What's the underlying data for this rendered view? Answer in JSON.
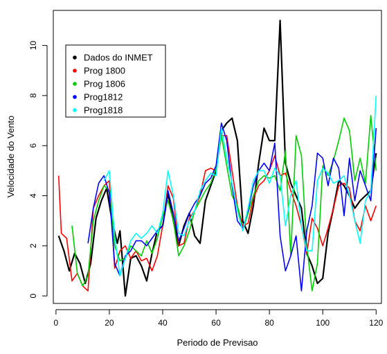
{
  "chart_data": {
    "type": "line",
    "xlabel": "Periodo de Previsao",
    "ylabel": "Velocidade do Vento",
    "xlim": [
      -1,
      122
    ],
    "ylim": [
      -0.3,
      11.4
    ],
    "x_ticks": [
      0,
      20,
      40,
      60,
      80,
      100,
      120
    ],
    "y_ticks": [
      0,
      2,
      4,
      6,
      8,
      10
    ],
    "grid": false,
    "legend_position": "top-left",
    "series": [
      {
        "name": "Dados do INMET",
        "color": "#000000",
        "x": [
          1,
          3,
          5,
          7,
          9,
          11,
          13,
          15,
          17,
          19,
          21,
          23,
          24,
          25,
          26,
          28,
          30,
          32,
          34,
          36,
          38,
          40,
          42,
          44,
          46,
          48,
          50,
          52,
          54,
          56,
          58,
          60,
          62,
          64,
          66,
          68,
          70,
          72,
          74,
          76,
          78,
          80,
          82,
          84,
          86,
          88,
          90,
          92,
          94,
          96,
          98,
          100,
          102,
          104,
          106,
          108,
          110,
          112,
          114,
          116,
          118,
          120
        ],
        "y": [
          2.4,
          1.8,
          1.0,
          1.7,
          1.3,
          0.5,
          1.3,
          3.1,
          3.8,
          4.3,
          3.0,
          2.1,
          2.6,
          1.3,
          0.0,
          1.5,
          1.6,
          1.2,
          0.6,
          1.7,
          2.6,
          2.8,
          4.1,
          3.0,
          2.0,
          2.8,
          3.3,
          2.4,
          2.1,
          3.8,
          4.4,
          5.0,
          6.6,
          6.9,
          7.1,
          6.2,
          3.0,
          2.5,
          3.6,
          5.3,
          6.7,
          6.2,
          6.2,
          11.0,
          5.3,
          4.5,
          4.0,
          3.5,
          1.7,
          1.2,
          0.5,
          0.7,
          2.5,
          3.5,
          4.6,
          4.4,
          4.0,
          3.5,
          3.8,
          4.0,
          4.2,
          5.7
        ]
      },
      {
        "name": "Prog 1800",
        "color": "#ff0000",
        "x": [
          1,
          2,
          4,
          6,
          8,
          10,
          12,
          14,
          16,
          18,
          20,
          22,
          24,
          26,
          28,
          30,
          32,
          34,
          36,
          38,
          40,
          42,
          44,
          46,
          48,
          50,
          52,
          54,
          56,
          58,
          60,
          62,
          64,
          66,
          68,
          70,
          72,
          74,
          76,
          78,
          80,
          82,
          84,
          86,
          88,
          90,
          92,
          94,
          96,
          98,
          100,
          102,
          104,
          106,
          108,
          110,
          112,
          114,
          116,
          118,
          120
        ],
        "y": [
          4.8,
          2.5,
          2.3,
          0.6,
          0.9,
          0.4,
          0.2,
          3.5,
          4.0,
          4.4,
          4.6,
          1.1,
          1.8,
          2.0,
          1.5,
          1.8,
          1.4,
          1.5,
          1.0,
          1.6,
          2.8,
          4.4,
          3.9,
          2.0,
          2.1,
          3.1,
          3.4,
          4.0,
          5.0,
          5.1,
          5.0,
          6.4,
          6.4,
          5.0,
          3.6,
          2.8,
          2.9,
          3.9,
          4.4,
          4.6,
          5.0,
          5.6,
          4.8,
          4.9,
          4.2,
          3.6,
          2.8,
          1.7,
          3.1,
          2.7,
          2.0,
          2.7,
          3.5,
          4.4,
          4.5,
          4.3,
          3.0,
          2.6,
          3.6,
          3.0,
          3.6
        ]
      },
      {
        "name": "Prog 1806",
        "color": "#00cd00",
        "x": [
          6,
          8,
          10,
          12,
          14,
          16,
          18,
          20,
          22,
          24,
          26,
          28,
          30,
          32,
          34,
          36,
          38,
          40,
          42,
          44,
          46,
          48,
          50,
          52,
          54,
          56,
          58,
          60,
          62,
          64,
          66,
          68,
          70,
          72,
          74,
          76,
          78,
          80,
          82,
          84,
          86,
          88,
          90,
          92,
          94,
          96,
          98,
          100,
          102,
          104,
          106,
          108,
          110,
          112,
          114,
          116,
          118,
          120
        ],
        "y": [
          2.8,
          0.9,
          0.4,
          0.8,
          3.0,
          3.8,
          4.4,
          4.2,
          2.0,
          1.4,
          1.5,
          2.0,
          1.8,
          1.6,
          2.2,
          1.7,
          2.3,
          3.2,
          3.8,
          3.0,
          1.6,
          2.0,
          2.6,
          3.4,
          3.8,
          4.2,
          4.5,
          5.1,
          6.4,
          5.2,
          4.0,
          3.6,
          2.6,
          3.3,
          4.0,
          4.6,
          4.8,
          4.7,
          4.8,
          4.2,
          5.8,
          1.6,
          6.4,
          5.6,
          2.0,
          0.2,
          1.3,
          5.2,
          4.8,
          5.4,
          6.2,
          7.1,
          6.6,
          4.6,
          5.5,
          4.5,
          7.2,
          5.0
        ]
      },
      {
        "name": "Prog1812",
        "color": "#0000ff",
        "x": [
          12,
          14,
          16,
          18,
          20,
          22,
          24,
          26,
          28,
          30,
          32,
          34,
          36,
          38,
          40,
          42,
          44,
          46,
          48,
          50,
          52,
          54,
          56,
          58,
          60,
          62,
          64,
          66,
          68,
          70,
          72,
          74,
          76,
          78,
          80,
          82,
          84,
          86,
          88,
          90,
          92,
          94,
          96,
          98,
          100,
          102,
          104,
          106,
          108,
          110,
          112,
          114,
          116,
          118,
          120
        ],
        "y": [
          2.1,
          3.5,
          4.5,
          4.8,
          4.1,
          1.3,
          0.8,
          1.6,
          1.8,
          2.2,
          2.2,
          2.0,
          2.3,
          2.6,
          2.8,
          4.2,
          3.3,
          2.2,
          2.7,
          3.3,
          3.7,
          4.0,
          4.5,
          4.7,
          5.2,
          6.9,
          6.2,
          4.4,
          3.0,
          2.7,
          3.4,
          4.4,
          5.0,
          5.3,
          5.0,
          6.1,
          2.4,
          1.0,
          1.6,
          2.4,
          0.2,
          2.6,
          3.6,
          5.7,
          5.5,
          4.4,
          5.5,
          5.1,
          3.2,
          5.5,
          3.8,
          5.0,
          4.4,
          3.8,
          6.7
        ]
      },
      {
        "name": "Prog1818",
        "color": "#00ffff",
        "x": [
          18,
          20,
          22,
          24,
          26,
          28,
          30,
          32,
          34,
          36,
          38,
          40,
          42,
          44,
          46,
          48,
          50,
          52,
          54,
          56,
          58,
          60,
          62,
          64,
          66,
          68,
          70,
          72,
          74,
          76,
          78,
          80,
          82,
          84,
          86,
          88,
          90,
          92,
          94,
          96,
          98,
          100,
          102,
          104,
          106,
          108,
          110,
          112,
          114,
          116,
          118,
          120
        ],
        "y": [
          4.6,
          5.0,
          2.4,
          0.8,
          1.5,
          2.2,
          2.5,
          2.3,
          2.5,
          2.8,
          2.5,
          3.3,
          5.0,
          4.0,
          2.5,
          2.4,
          3.0,
          3.4,
          4.2,
          4.6,
          4.9,
          4.8,
          6.7,
          5.5,
          4.5,
          3.4,
          2.6,
          3.5,
          4.6,
          5.0,
          5.0,
          4.5,
          5.1,
          4.8,
          2.8,
          4.0,
          4.6,
          2.8,
          1.8,
          1.8,
          4.6,
          5.1,
          4.9,
          4.5,
          4.6,
          4.8,
          4.0,
          3.0,
          2.1,
          3.8,
          4.2,
          8.0
        ]
      }
    ]
  }
}
